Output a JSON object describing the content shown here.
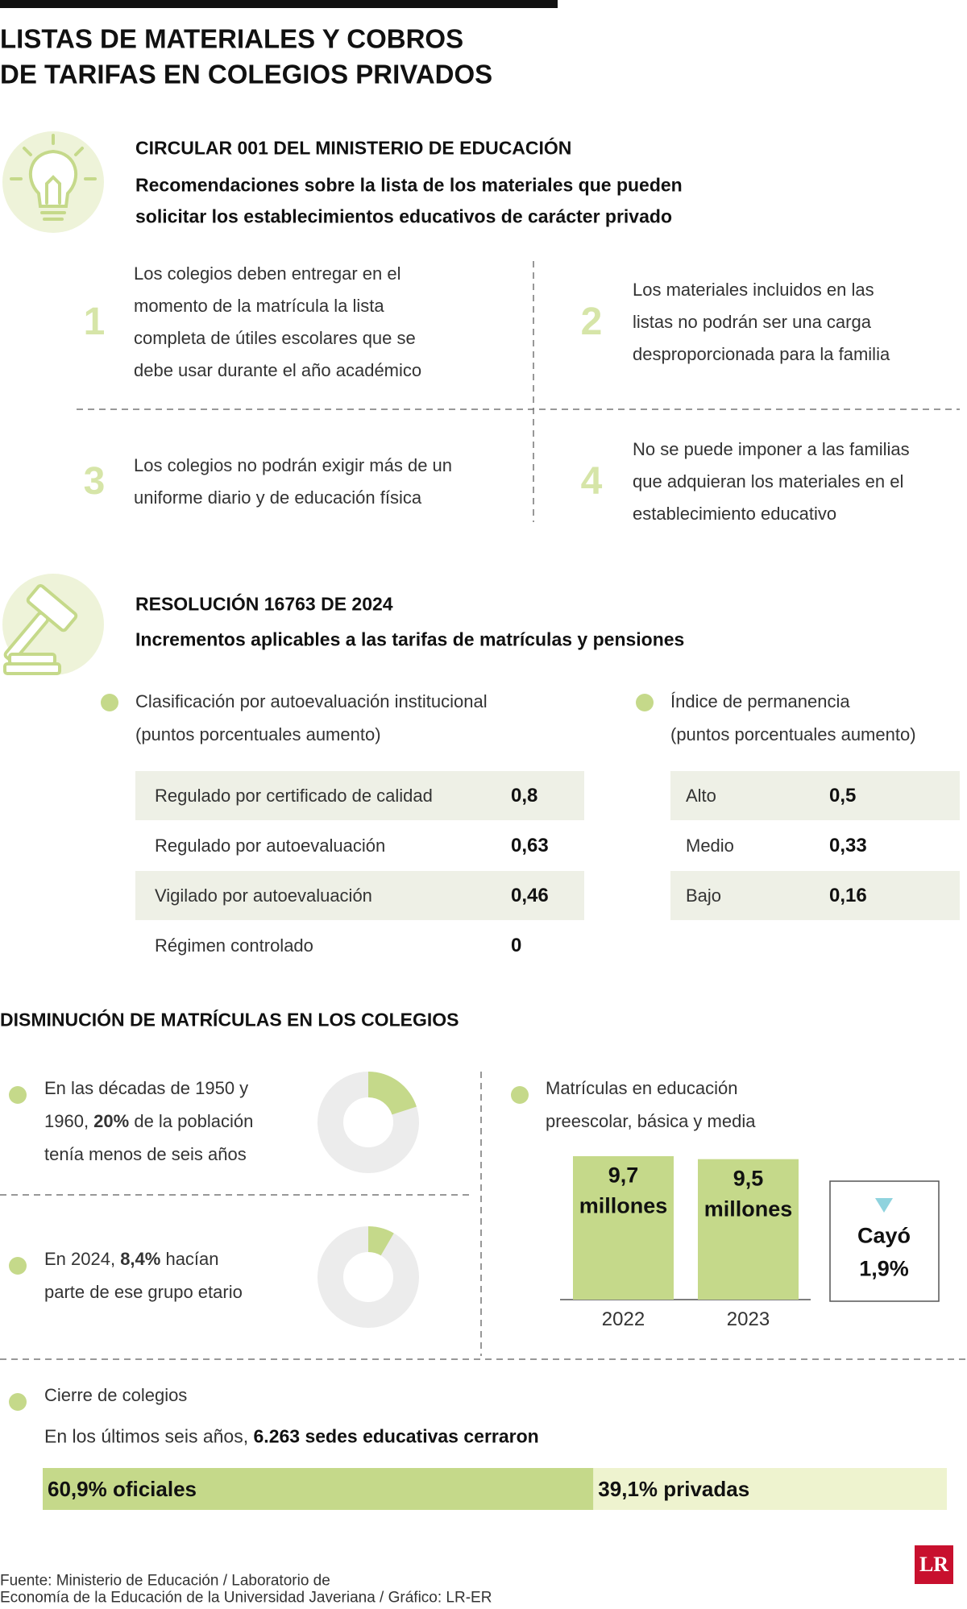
{
  "title": [
    "LISTAS DE MATERIALES Y COBROS",
    "DE TARIFAS EN COLEGIOS PRIVADOS"
  ],
  "circular": {
    "heading": "CIRCULAR 001 DEL MINISTERIO DE EDUCACIÓN",
    "subtitle": [
      "Recomendaciones sobre la lista de los materiales que pueden",
      "solicitar los establecimientos educativos de carácter privado"
    ],
    "items": [
      {
        "number": 1,
        "lines": [
          "Los colegios deben entregar en el",
          "momento de la matrícula la lista",
          "completa de útiles escolares que se",
          "debe usar durante el año académico"
        ]
      },
      {
        "number": 2,
        "lines": [
          "Los materiales incluidos en las",
          "listas no podrán ser una carga",
          "desproporcionada para la familia"
        ]
      },
      {
        "number": 3,
        "lines": [
          "Los colegios no podrán exigir más de un",
          "uniforme diario y de educación física"
        ]
      },
      {
        "number": 4,
        "lines": [
          "No se puede imponer a las familias",
          "que adquieran los materiales en el",
          "establecimiento educativo"
        ]
      }
    ]
  },
  "resolution": {
    "heading": "RESOLUCIÓN 16763 DE 2024",
    "subtitle": "Incrementos aplicables a las tarifas de matrículas y pensiones",
    "tables": [
      {
        "title": [
          "Clasificación por autoevaluación institucional",
          "(puntos porcentuales aumento)"
        ],
        "rows": [
          [
            "Regulado por certificado de calidad",
            "0,8"
          ],
          [
            "Regulado por autoevaluación",
            "0,63"
          ],
          [
            "Vigilado por autoevaluación",
            "0,46"
          ],
          [
            "Régimen controlado",
            "0"
          ]
        ]
      },
      {
        "title": [
          "Índice de permanencia",
          "(puntos porcentuales aumento)"
        ],
        "rows": [
          [
            "Alto",
            "0,5"
          ],
          [
            "Medio",
            "0,33"
          ],
          [
            "Bajo",
            "0,16"
          ]
        ]
      }
    ]
  },
  "enrollment_drop": {
    "heading": "DISMINUCIÓN DE MATRÍCULAS EN LOS COLEGIOS",
    "population": [
      {
        "lines": [
          [
            "En las décadas de 1950 y"
          ],
          [
            "1960, ",
            {
              "value": 20,
              "label": "20%"
            },
            " de la población"
          ],
          [
            "tenía menos de seis años"
          ]
        ]
      },
      {
        "lines": [
          [
            "En 2024, ",
            {
              "value": 8.4,
              "label": "8,4%"
            },
            " hacían"
          ],
          [
            "parte de ese grupo etario"
          ]
        ]
      }
    ],
    "share_color": "#c5d98a",
    "rest_color": "#ececec",
    "enrollment": {
      "title": [
        "Matrículas en educación",
        "preescolar, básica y media"
      ],
      "color": "#c5d98a",
      "bars": [
        {
          "year": "2022",
          "value": 9.7,
          "label": "9,7",
          "unit": "millones"
        },
        {
          "year": "2023",
          "value": 9.5,
          "label": "9,5",
          "unit": "millones"
        }
      ],
      "change": [
        "Cayó",
        "1,9%"
      ]
    },
    "closures": {
      "title": "Cierre de colegios",
      "sentence": {
        "text": "En los últimos seis años, ",
        "highlight": "6.263 sedes educativas cerraron"
      },
      "split": [
        {
          "value": 60.9,
          "label": "60,9% oficiales",
          "color": "#c5d98a"
        },
        {
          "value": 39.1,
          "label": "39,1% privadas",
          "color": "#eef3cf"
        }
      ]
    }
  },
  "source": [
    "Fuente: Ministerio de Educación / Laboratorio de",
    "Economía de la Educación de la Universidad Javeriana / Gráfico: LR-ER"
  ],
  "logo": "LR"
}
